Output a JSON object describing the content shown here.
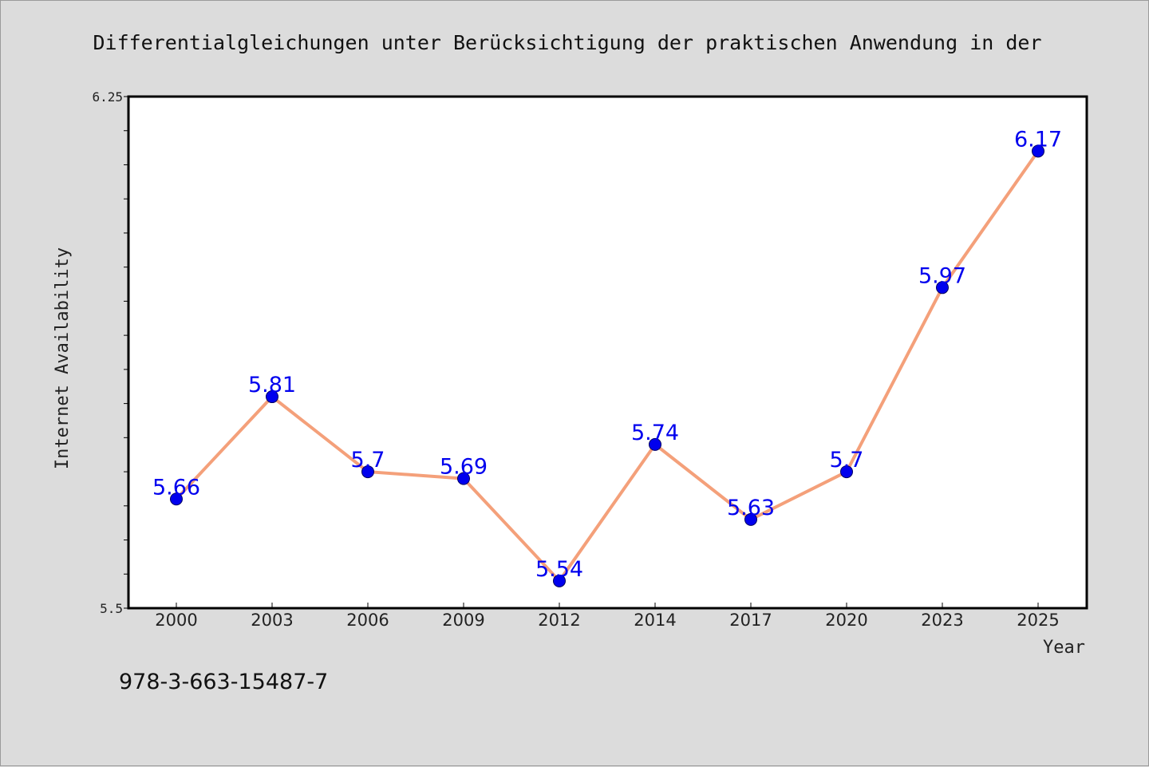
{
  "page": {
    "footer_code": "978-3-663-15487-7"
  },
  "chart_data": {
    "type": "line",
    "title": "Differentialgleichungen unter Berücksichtigung der praktischen Anwendung in der",
    "xlabel": "Year",
    "ylabel": "Internet Availability",
    "categories": [
      "2000",
      "2003",
      "2006",
      "2009",
      "2012",
      "2014",
      "2017",
      "2020",
      "2023",
      "2025"
    ],
    "values": [
      5.66,
      5.81,
      5.7,
      5.69,
      5.54,
      5.74,
      5.63,
      5.7,
      5.97,
      6.17
    ],
    "ylim": [
      5.5,
      6.25
    ],
    "y_tick_labels": [
      "5.5",
      "6.25"
    ],
    "grid": false,
    "legend": "none",
    "colors": {
      "line": "#f4a07a",
      "marker": "#0000ee",
      "data_label": "#0000ee",
      "axis": "#000000",
      "plot_bg": "#ffffff",
      "page_bg": "#dcdcdc"
    }
  }
}
